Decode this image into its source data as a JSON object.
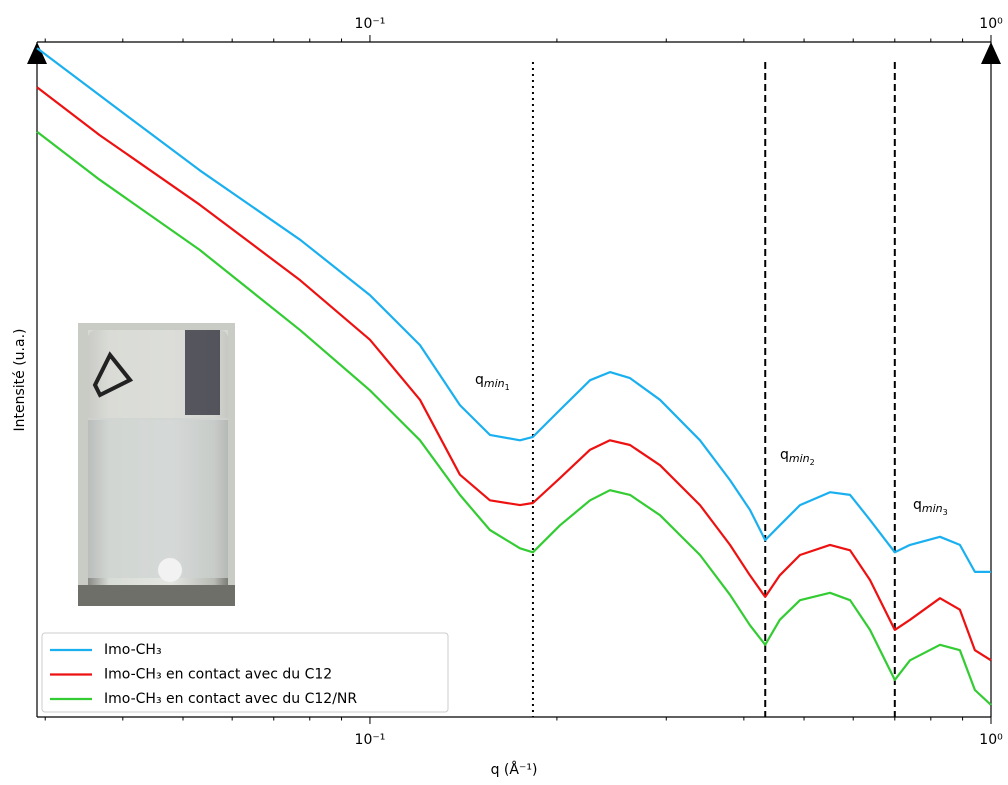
{
  "chart_data": {
    "type": "line",
    "xlabel": "q (Å⁻¹)",
    "ylabel": "Intensité (u.a.)",
    "xscale": "log",
    "xlim": [
      0.0291,
      1
    ],
    "ylim": [
      0,
      100
    ],
    "xticks": [
      {
        "value": 0.1,
        "label": "10⁻¹"
      },
      {
        "value": 1,
        "label": "10⁰"
      }
    ],
    "xminorticks": [
      0.03,
      0.04,
      0.05,
      0.06,
      0.07,
      0.08,
      0.09,
      0.2,
      0.3,
      0.4,
      0.5,
      0.6,
      0.7,
      0.8,
      0.9
    ],
    "legend": "lower left",
    "x": [
      0.0291,
      0.0367,
      0.0532,
      0.0772,
      0.1,
      0.1204,
      0.1396,
      0.156,
      0.1744,
      0.183,
      0.2023,
      0.2262,
      0.2435,
      0.2623,
      0.2931,
      0.34,
      0.38,
      0.409,
      0.433,
      0.457,
      0.4925,
      0.5505,
      0.593,
      0.6385,
      0.7,
      0.7406,
      0.8276,
      0.891,
      0.942,
      1.0
    ],
    "series": [
      {
        "name": "Imo-CH₃",
        "color": "#1ab0f0",
        "values": [
          99.1,
          92.1,
          81.0,
          70.7,
          62.5,
          55.1,
          46.2,
          41.8,
          41.0,
          41.5,
          45.5,
          49.9,
          51.1,
          50.2,
          47.0,
          41.0,
          35.1,
          30.7,
          26.2,
          28.4,
          31.4,
          33.3,
          32.9,
          29.2,
          24.4,
          25.5,
          26.7,
          25.5,
          21.5,
          21.5
        ]
      },
      {
        "name": "Imo-CH₃ en contact avec du C12",
        "color": "#ee1111",
        "values": [
          93.3,
          86.2,
          75.9,
          64.7,
          55.9,
          47.0,
          35.9,
          32.1,
          31.4,
          31.7,
          35.4,
          39.6,
          41.0,
          40.3,
          37.3,
          31.4,
          25.5,
          21.0,
          17.8,
          21.0,
          24.0,
          25.5,
          24.7,
          20.3,
          12.9,
          14.4,
          17.6,
          15.9,
          9.9,
          8.4
        ]
      },
      {
        "name": "Imo-CH₃ en contact avec du C12/NR",
        "color": "#33cc33",
        "values": [
          86.7,
          79.6,
          69.2,
          57.3,
          48.4,
          41.0,
          32.9,
          27.7,
          25.0,
          24.4,
          28.4,
          32.1,
          33.6,
          32.9,
          29.9,
          24.0,
          18.1,
          13.6,
          10.7,
          14.4,
          17.3,
          18.4,
          17.3,
          12.9,
          5.5,
          8.4,
          10.7,
          9.9,
          4.0,
          1.8
        ]
      }
    ],
    "annotations": [
      {
        "x": 0.183,
        "linestyle": "dotted",
        "text": "q",
        "sub": "min",
        "subsub": "1"
      },
      {
        "x": 0.433,
        "linestyle": "dashed",
        "text": "q",
        "sub": "min",
        "subsub": "2"
      },
      {
        "x": 0.7,
        "linestyle": "dashed",
        "text": "q",
        "sub": "min",
        "subsub": "3"
      }
    ]
  }
}
